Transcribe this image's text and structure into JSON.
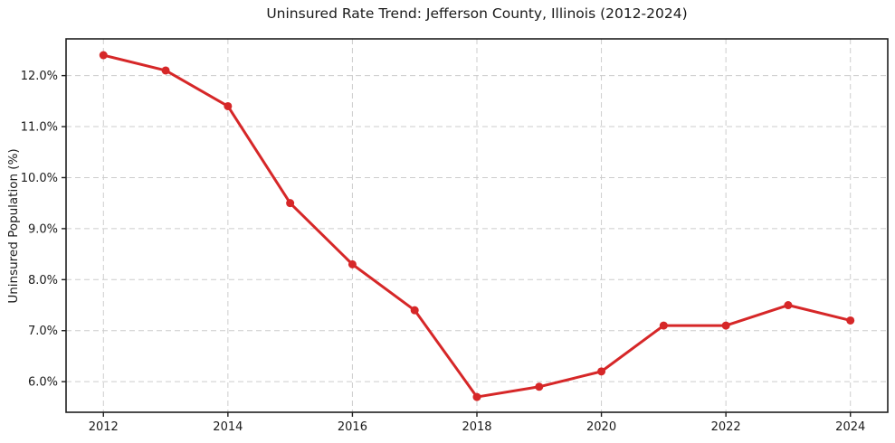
{
  "title": "Uninsured Rate Trend: Jefferson County, Illinois (2012-2024)",
  "chart_data": {
    "type": "line",
    "title": "Uninsured Rate Trend: Jefferson County, Illinois (2012-2024)",
    "xlabel": "",
    "ylabel": "Uninsured Population (%)",
    "x": [
      2012,
      2013,
      2014,
      2015,
      2016,
      2017,
      2018,
      2019,
      2020,
      2021,
      2022,
      2023,
      2024
    ],
    "series": [
      {
        "name": "Uninsured Rate",
        "values": [
          12.4,
          12.1,
          11.4,
          9.5,
          8.3,
          7.4,
          5.7,
          5.9,
          6.2,
          7.1,
          7.1,
          7.5,
          7.2
        ]
      }
    ],
    "xlim": [
      2011.4,
      2024.6
    ],
    "ylim": [
      5.4,
      12.72
    ],
    "xticks": [
      2012,
      2014,
      2016,
      2018,
      2020,
      2022,
      2024
    ],
    "xtick_labels": [
      "2012",
      "2014",
      "2016",
      "2018",
      "2020",
      "2022",
      "2024"
    ],
    "yticks": [
      6.0,
      7.0,
      8.0,
      9.0,
      10.0,
      11.0,
      12.0
    ],
    "ytick_labels": [
      "6.0%",
      "7.0%",
      "8.0%",
      "9.0%",
      "10.0%",
      "11.0%",
      "12.0%"
    ],
    "grid": true,
    "grid_style": "dashed",
    "legend": "none",
    "colors": {
      "line": "#d62728",
      "marker": "#d62728",
      "grid": "#cccccc",
      "spine": "#1f1f1f",
      "tick": "#1f1f1f",
      "text": "#1a1a1a",
      "background": "#ffffff"
    }
  }
}
